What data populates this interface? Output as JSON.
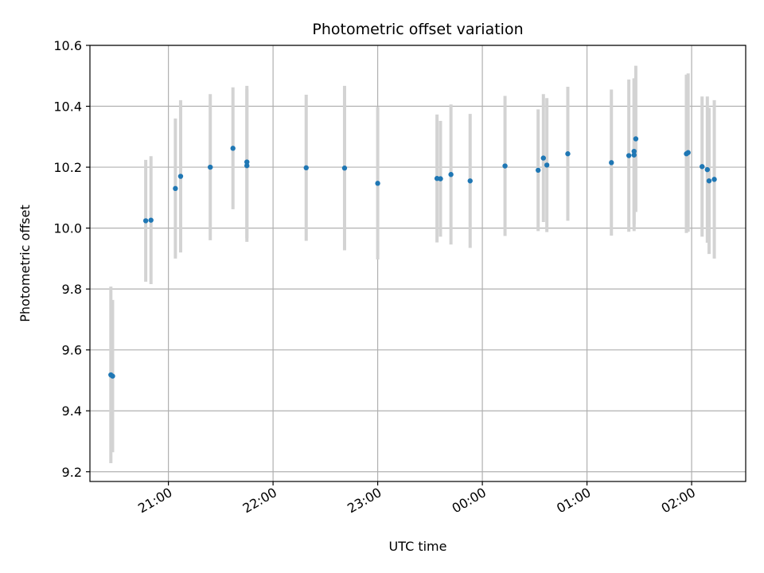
{
  "chart_data": {
    "type": "scatter",
    "title": "Photometric offset variation",
    "xlabel": "UTC time",
    "ylabel": "Photometric offset",
    "ylim": [
      9.168,
      10.6
    ],
    "y_ticks": [
      9.2,
      9.4,
      9.6,
      9.8,
      10.0,
      10.2,
      10.4,
      10.6
    ],
    "y_tick_labels": [
      "9.2",
      "9.4",
      "9.6",
      "9.8",
      "10.0",
      "10.2",
      "10.4",
      "10.6"
    ],
    "xlim": [
      "20:15",
      "02:31"
    ],
    "x_ticks": [
      "21:00",
      "22:00",
      "23:00",
      "00:00",
      "01:00",
      "02:00"
    ],
    "x_tick_labels": [
      "21:00",
      "22:00",
      "23:00",
      "00:00",
      "01:00",
      "02:00"
    ],
    "grid": true,
    "colors": {
      "point": "#1f77b4",
      "errorbar": "#d3d3d3",
      "grid": "#b0b0b0"
    },
    "points": [
      {
        "x": "20:27",
        "y": 9.518,
        "yerr": 0.29
      },
      {
        "x": "20:28",
        "y": 9.514,
        "yerr": 0.25
      },
      {
        "x": "20:47",
        "y": 10.024,
        "yerr": 0.2
      },
      {
        "x": "20:50",
        "y": 10.026,
        "yerr": 0.21
      },
      {
        "x": "21:04",
        "y": 10.13,
        "yerr": 0.23
      },
      {
        "x": "21:07",
        "y": 10.17,
        "yerr": 0.25
      },
      {
        "x": "21:24",
        "y": 10.2,
        "yerr": 0.24
      },
      {
        "x": "21:37",
        "y": 10.262,
        "yerr": 0.2
      },
      {
        "x": "21:45",
        "y": 10.217,
        "yerr": 0.25
      },
      {
        "x": "21:45",
        "y": 10.205,
        "yerr": 0.25
      },
      {
        "x": "22:19",
        "y": 10.198,
        "yerr": 0.24
      },
      {
        "x": "22:41",
        "y": 10.197,
        "yerr": 0.27
      },
      {
        "x": "23:00",
        "y": 10.147,
        "yerr": 0.25
      },
      {
        "x": "23:34",
        "y": 10.163,
        "yerr": 0.21
      },
      {
        "x": "23:36",
        "y": 10.162,
        "yerr": 0.19
      },
      {
        "x": "23:42",
        "y": 10.176,
        "yerr": 0.23
      },
      {
        "x": "23:53",
        "y": 10.155,
        "yerr": 0.22
      },
      {
        "x": "00:13",
        "y": 10.204,
        "yerr": 0.23
      },
      {
        "x": "00:32",
        "y": 10.19,
        "yerr": 0.2
      },
      {
        "x": "00:35",
        "y": 10.23,
        "yerr": 0.21
      },
      {
        "x": "00:37",
        "y": 10.207,
        "yerr": 0.22
      },
      {
        "x": "00:49",
        "y": 10.244,
        "yerr": 0.22
      },
      {
        "x": "01:14",
        "y": 10.215,
        "yerr": 0.24
      },
      {
        "x": "01:24",
        "y": 10.238,
        "yerr": 0.25
      },
      {
        "x": "01:27",
        "y": 10.24,
        "yerr": 0.25
      },
      {
        "x": "01:27",
        "y": 10.252,
        "yerr": 0.24
      },
      {
        "x": "01:28",
        "y": 10.293,
        "yerr": 0.24
      },
      {
        "x": "01:57",
        "y": 10.244,
        "yerr": 0.26
      },
      {
        "x": "01:58",
        "y": 10.248,
        "yerr": 0.26
      },
      {
        "x": "02:06",
        "y": 10.202,
        "yerr": 0.23
      },
      {
        "x": "02:09",
        "y": 10.192,
        "yerr": 0.24
      },
      {
        "x": "02:10",
        "y": 10.155,
        "yerr": 0.24
      },
      {
        "x": "02:13",
        "y": 10.16,
        "yerr": 0.26
      }
    ]
  }
}
